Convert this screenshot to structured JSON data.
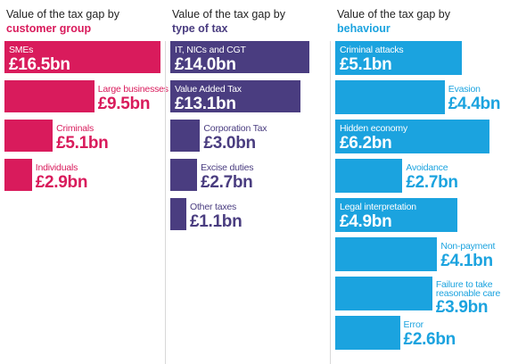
{
  "chart_data": [
    {
      "type": "bar",
      "title": "Value of the tax gap by",
      "subtitle": "customer group",
      "unit": "£bn",
      "categories": [
        "SMEs",
        "Large businesses",
        "Criminals",
        "Individuals"
      ],
      "values": [
        16.5,
        9.5,
        5.1,
        2.9
      ],
      "value_labels": [
        "£16.5bn",
        "£9.5bn",
        "£5.1bn",
        "£2.9bn"
      ],
      "color": "#d91b5c"
    },
    {
      "type": "bar",
      "title": "Value of the tax gap by",
      "subtitle": "type of tax",
      "unit": "£bn",
      "categories": [
        "IT, NICs and CGT",
        "Value Added Tax",
        "Corporation Tax",
        "Excise duties",
        "Other taxes"
      ],
      "values": [
        14.0,
        13.1,
        3.0,
        2.7,
        1.1
      ],
      "value_labels": [
        "£14.0bn",
        "£13.1bn",
        "£3.0bn",
        "£2.7bn",
        "£1.1bn"
      ],
      "color": "#4a3d80"
    },
    {
      "type": "bar",
      "title": "Value of the tax gap by",
      "subtitle": "behaviour",
      "unit": "£bn",
      "categories": [
        "Criminal attacks",
        "Evasion",
        "Hidden economy",
        "Avoidance",
        "Legal interpretation",
        "Non-payment",
        "Failure to take reasonable care",
        "Error"
      ],
      "values": [
        5.1,
        4.4,
        6.2,
        2.7,
        4.9,
        4.1,
        3.9,
        2.6
      ],
      "value_labels": [
        "£5.1bn",
        "£4.4bn",
        "£6.2bn",
        "£2.7bn",
        "£4.9bn",
        "£4.1bn",
        "£3.9bn",
        "£2.6bn"
      ],
      "color": "#1ba3df"
    }
  ]
}
